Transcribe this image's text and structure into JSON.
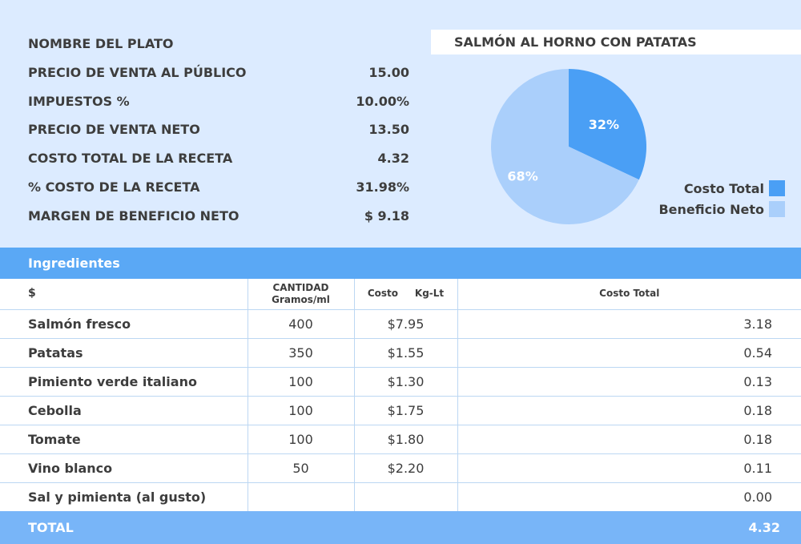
{
  "summary": {
    "rows": [
      {
        "label": "NOMBRE DEL PLATO",
        "value": ""
      },
      {
        "label": "PRECIO DE VENTA AL PÚBLICO",
        "value": "15.00"
      },
      {
        "label": "IMPUESTOS %",
        "value": "10.00%"
      },
      {
        "label": "PRECIO DE VENTA NETO",
        "value": "13.50"
      },
      {
        "label": "COSTO TOTAL DE LA RECETA",
        "value": "4.32"
      },
      {
        "label": "% COSTO DE LA RECETA",
        "value": "31.98%"
      },
      {
        "label": "MARGEN DE BENEFICIO NETO",
        "value": "$ 9.18"
      }
    ],
    "dish_name": "SALMÓN AL HORNO CON PATATAS"
  },
  "chart_data": {
    "type": "pie",
    "slices": [
      {
        "label": "Costo Total",
        "value": 32,
        "display": "32%",
        "color": "#4a9ff5"
      },
      {
        "label": "Beneficio Neto",
        "value": 68,
        "display": "68%",
        "color": "#aacffb"
      }
    ],
    "legend_position": "right"
  },
  "ingredients": {
    "title": "Ingredientes",
    "headers": {
      "name": "$",
      "qty_line1": "CANTIDAD",
      "qty_line2": "Gramos/ml",
      "cost": "Costo     Kg-Lt",
      "total": "Costo Total"
    },
    "rows": [
      {
        "name": "Salmón fresco",
        "qty": "400",
        "cost": "$7.95",
        "total": "3.18"
      },
      {
        "name": "Patatas",
        "qty": "350",
        "cost": "$1.55",
        "total": "0.54"
      },
      {
        "name": "Pimiento verde italiano",
        "qty": "100",
        "cost": "$1.30",
        "total": "0.13"
      },
      {
        "name": "Cebolla",
        "qty": "100",
        "cost": "$1.75",
        "total": "0.18"
      },
      {
        "name": "Tomate",
        "qty": "100",
        "cost": "$1.80",
        "total": "0.18"
      },
      {
        "name": "Vino blanco",
        "qty": "50",
        "cost": "$2.20",
        "total": "0.11"
      },
      {
        "name": "Sal y pimienta (al gusto)",
        "qty": "",
        "cost": "",
        "total": "0.00"
      }
    ],
    "total_label": "TOTAL",
    "total_value": "4.32"
  }
}
